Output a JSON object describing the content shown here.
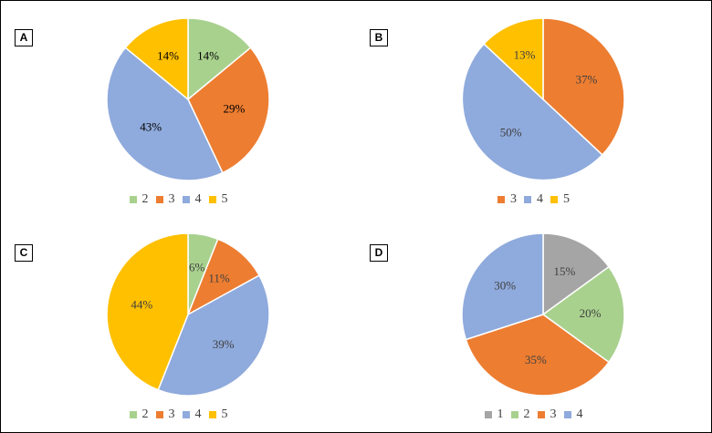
{
  "colors": {
    "gray": "#a5a5a5",
    "green": "#a9d18e",
    "orange": "#ed7d31",
    "blue": "#8faadc",
    "gold": "#ffc000"
  },
  "chart_data": [
    {
      "type": "pie",
      "panel_label": "A",
      "slices": [
        {
          "category": "2",
          "percent": 14,
          "label": "14%",
          "color": "#a9d18e"
        },
        {
          "category": "3",
          "percent": 29,
          "label": "29%",
          "color": "#ed7d31"
        },
        {
          "category": "4",
          "percent": 43,
          "label": "43%",
          "color": "#8faadc"
        },
        {
          "category": "5",
          "percent": 14,
          "label": "14%",
          "color": "#ffc000"
        }
      ],
      "label_color": "#000000",
      "legend": [
        {
          "text": "2",
          "color": "#a9d18e"
        },
        {
          "text": "3",
          "color": "#ed7d31"
        },
        {
          "text": "4",
          "color": "#8faadc"
        },
        {
          "text": "5",
          "color": "#ffc000"
        }
      ]
    },
    {
      "type": "pie",
      "panel_label": "B",
      "slices": [
        {
          "category": "3",
          "percent": 37,
          "label": "37%",
          "color": "#ed7d31"
        },
        {
          "category": "4",
          "percent": 50,
          "label": "50%",
          "color": "#8faadc"
        },
        {
          "category": "5",
          "percent": 13,
          "label": "13%",
          "color": "#ffc000"
        }
      ],
      "label_color": "#404040",
      "legend": [
        {
          "text": "3",
          "color": "#ed7d31"
        },
        {
          "text": "4",
          "color": "#8faadc"
        },
        {
          "text": "5",
          "color": "#ffc000"
        }
      ]
    },
    {
      "type": "pie",
      "panel_label": "C",
      "slices": [
        {
          "category": "2",
          "percent": 6,
          "label": "6%",
          "color": "#a9d18e"
        },
        {
          "category": "3",
          "percent": 11,
          "label": "11%",
          "color": "#ed7d31"
        },
        {
          "category": "4",
          "percent": 39,
          "label": "39%",
          "color": "#8faadc"
        },
        {
          "category": "5",
          "percent": 44,
          "label": "44%",
          "color": "#ffc000"
        }
      ],
      "label_color": "#404040",
      "legend": [
        {
          "text": "2",
          "color": "#a9d18e"
        },
        {
          "text": "3",
          "color": "#ed7d31"
        },
        {
          "text": "4",
          "color": "#8faadc"
        },
        {
          "text": "5",
          "color": "#ffc000"
        }
      ]
    },
    {
      "type": "pie",
      "panel_label": "D",
      "slices": [
        {
          "category": "1",
          "percent": 15,
          "label": "15%",
          "color": "#a5a5a5"
        },
        {
          "category": "2",
          "percent": 20,
          "label": "20%",
          "color": "#a9d18e"
        },
        {
          "category": "3",
          "percent": 35,
          "label": "35%",
          "color": "#ed7d31"
        },
        {
          "category": "4",
          "percent": 30,
          "label": "30%",
          "color": "#8faadc"
        }
      ],
      "label_color": "#404040",
      "legend": [
        {
          "text": "1",
          "color": "#a5a5a5"
        },
        {
          "text": "2",
          "color": "#a9d18e"
        },
        {
          "text": "3",
          "color": "#ed7d31"
        },
        {
          "text": "4",
          "color": "#8faadc"
        }
      ]
    }
  ]
}
